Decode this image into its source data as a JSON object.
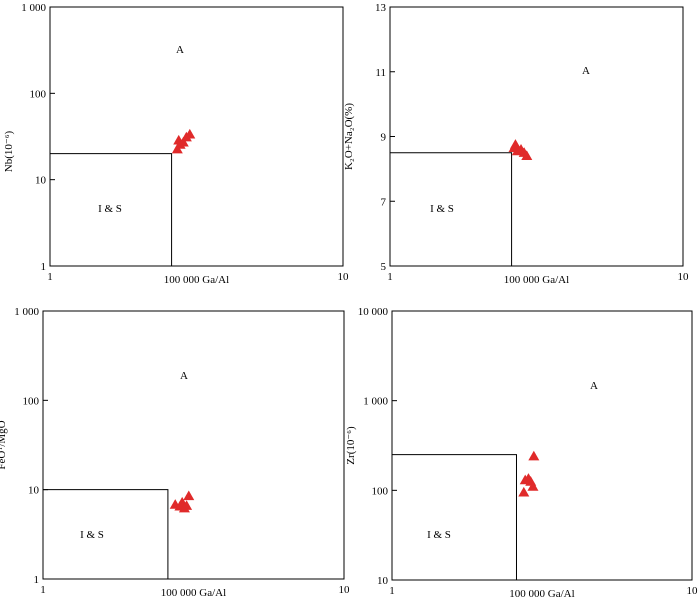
{
  "chart_data": [
    {
      "type": "scatter",
      "xlabel": "100 000 Ga/Al",
      "ylabel": "Nb(10⁻⁶)",
      "xscale": "log",
      "yscale": "log",
      "xlim": [
        1,
        10
      ],
      "ylim": [
        1,
        1000
      ],
      "xticks": [
        "1",
        "10"
      ],
      "yticks": [
        "1",
        "10",
        "100",
        "1 000"
      ],
      "boundary": {
        "x": 2.6,
        "y": 20
      },
      "region_labels": {
        "upper": "A",
        "lower": "I & S"
      },
      "marker_color": "#e02a2a",
      "points": [
        {
          "x": 2.72,
          "y": 22.5
        },
        {
          "x": 2.78,
          "y": 25.5
        },
        {
          "x": 2.75,
          "y": 28.5
        },
        {
          "x": 2.85,
          "y": 27.0
        },
        {
          "x": 2.92,
          "y": 31.0
        },
        {
          "x": 3.0,
          "y": 33.5
        }
      ]
    },
    {
      "type": "scatter",
      "xlabel": "100 000 Ga/Al",
      "ylabel": "K₂O+Na₂O(%)",
      "xscale": "log",
      "yscale": "linear",
      "xlim": [
        1,
        10
      ],
      "ylim": [
        5,
        13
      ],
      "xticks": [
        "1",
        "10"
      ],
      "yticks": [
        "5",
        "7",
        "9",
        "11",
        "13"
      ],
      "boundary": {
        "x": 2.6,
        "y": 8.5
      },
      "region_labels": {
        "upper": "A",
        "lower": "I & S"
      },
      "marker_color": "#e02a2a",
      "points": [
        {
          "x": 2.65,
          "y": 8.65
        },
        {
          "x": 2.68,
          "y": 8.75
        },
        {
          "x": 2.72,
          "y": 8.55
        },
        {
          "x": 2.8,
          "y": 8.6
        },
        {
          "x": 2.87,
          "y": 8.5
        },
        {
          "x": 2.93,
          "y": 8.4
        }
      ]
    },
    {
      "type": "scatter",
      "xlabel": "100 000 Ga/Al",
      "ylabel": "FeOᵀ/MgO",
      "xscale": "log",
      "yscale": "log",
      "xlim": [
        1,
        10
      ],
      "ylim": [
        1,
        1000
      ],
      "xticks": [
        "1",
        "10"
      ],
      "yticks": [
        "1",
        "10",
        "100",
        "1 000"
      ],
      "boundary": {
        "x": 2.6,
        "y": 10
      },
      "region_labels": {
        "upper": "A",
        "lower": "I & S"
      },
      "marker_color": "#e02a2a",
      "points": [
        {
          "x": 2.75,
          "y": 6.8
        },
        {
          "x": 2.85,
          "y": 6.5
        },
        {
          "x": 2.9,
          "y": 7.2
        },
        {
          "x": 2.95,
          "y": 6.2
        },
        {
          "x": 3.0,
          "y": 6.6
        },
        {
          "x": 3.05,
          "y": 8.5
        }
      ]
    },
    {
      "type": "scatter",
      "xlabel": "100 000 Ga/Al",
      "ylabel": "Zr(10⁻⁶)",
      "xscale": "log",
      "yscale": "log",
      "xlim": [
        1,
        10
      ],
      "ylim": [
        10,
        10000
      ],
      "xticks": [
        "1",
        "10"
      ],
      "yticks": [
        "10",
        "100",
        "1 000",
        "10 000"
      ],
      "boundary": {
        "x": 2.6,
        "y": 250
      },
      "region_labels": {
        "upper": "A",
        "lower": "I & S"
      },
      "marker_color": "#e02a2a",
      "points": [
        {
          "x": 2.75,
          "y": 95
        },
        {
          "x": 2.78,
          "y": 130
        },
        {
          "x": 2.85,
          "y": 135
        },
        {
          "x": 2.9,
          "y": 125
        },
        {
          "x": 2.95,
          "y": 110
        },
        {
          "x": 2.97,
          "y": 240
        }
      ]
    }
  ]
}
